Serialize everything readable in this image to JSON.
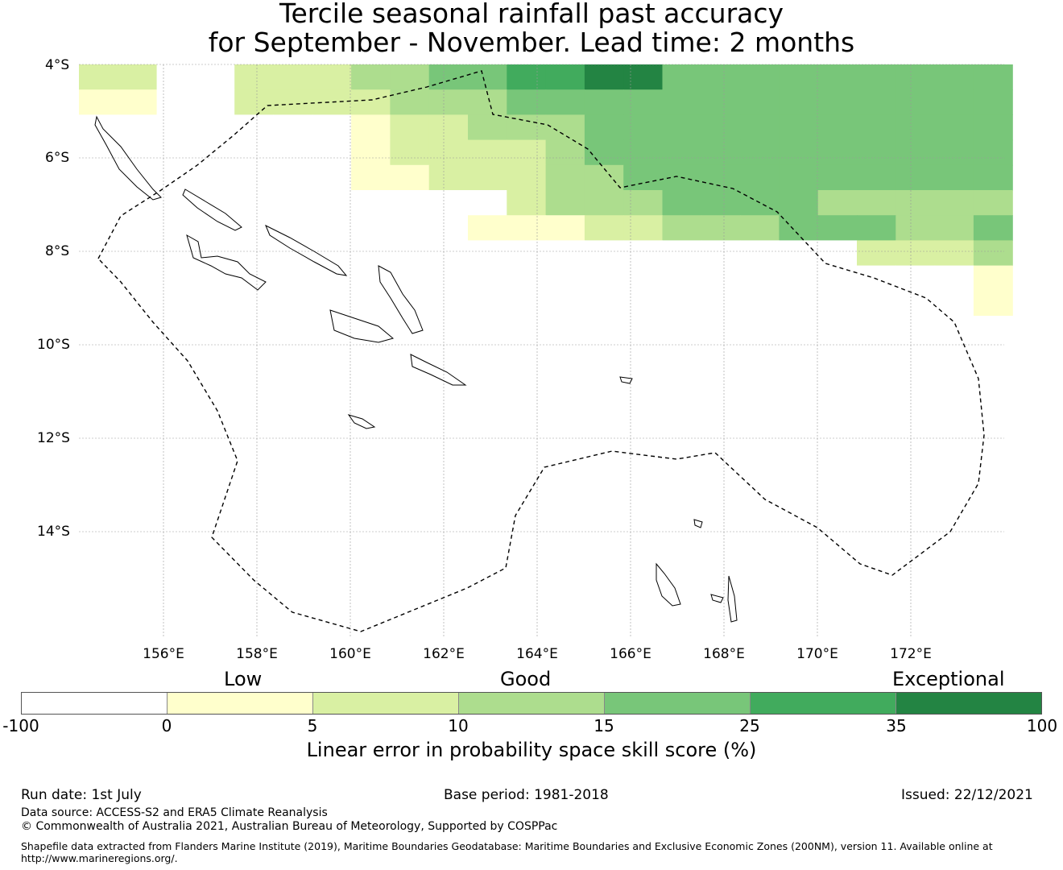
{
  "title": {
    "line1": "Tercile seasonal rainfall past accuracy",
    "line2": "for September - November. Lead time: 2 months"
  },
  "map": {
    "lat_labels": [
      "4°S",
      "6°S",
      "8°S",
      "10°S",
      "12°S",
      "14°S"
    ],
    "lon_labels": [
      "156°E",
      "158°E",
      "160°E",
      "162°E",
      "164°E",
      "166°E",
      "168°E",
      "170°E",
      "172°E"
    ],
    "palette": [
      "#ffffff",
      "#ffffcc",
      "#d9f0a3",
      "#addd8e",
      "#78c679",
      "#41ab5d",
      "#238443"
    ],
    "grid_rows": [
      "22002223344556644444444444444444",
      "11002222333444444444444444444444",
      "00000001223334444444444444444444",
      "00000001222234444444444444444444",
      "00000001122233444444444444444444",
      "00000000000233344443333344444444",
      "00000000001112233344433444444444",
      "00000000000000000000222333333333",
      "00000000000000000000000111222333",
      "00000000000000000000000111222222",
      "00000000000000000000000000000000",
      "00000000000000000000000000000000",
      "00000000000000000000000000000000",
      "00000000000000000000000000000000",
      "00000000000000000000000000000000",
      "00000000000000000000000000000000",
      "00000000000000000000000000000000",
      "00000000000000000000000000000000",
      "00000000000000000000000000000000",
      "00000000000000000000000000000000"
    ]
  },
  "colorbar": {
    "category_low": "Low",
    "category_good": "Good",
    "category_exceptional": "Exceptional",
    "colors": [
      "#ffffff",
      "#ffffcc",
      "#d9f0a3",
      "#addd8e",
      "#78c679",
      "#41ab5d",
      "#238443"
    ],
    "ticks": [
      "-100",
      "0",
      "5",
      "10",
      "15",
      "25",
      "35",
      "100"
    ],
    "label": "Linear error in probability space skill score (%)"
  },
  "footer": {
    "run_date": "Run date: 1st July",
    "base_period": "Base period: 1981-2018",
    "issued": "Issued: 22/12/2021",
    "data_source": "Data source: ACCESS-S2 and ERA5 Climate Reanalysis",
    "copyright": "© Commonwealth of Australia 2021, Australian Bureau of Meteorology, Supported by COSPPac",
    "shapefile_line1": "Shapefile data extracted from Flanders Marine Institute (2019), Maritime Boundaries Geodatabase: Maritime Boundaries and Exclusive Economic Zones (200NM), version 11. Available online at",
    "shapefile_line2": "http://www.marineregions.org/."
  }
}
